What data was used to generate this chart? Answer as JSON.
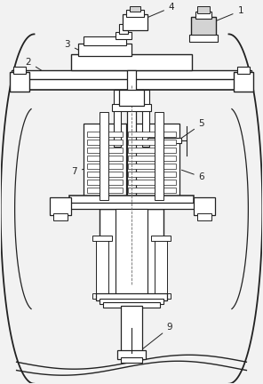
{
  "bg_color": "#f2f2f2",
  "line_color": "#222222",
  "label_color": "#222222",
  "fig_width": 2.96,
  "fig_height": 4.32,
  "dpi": 100
}
